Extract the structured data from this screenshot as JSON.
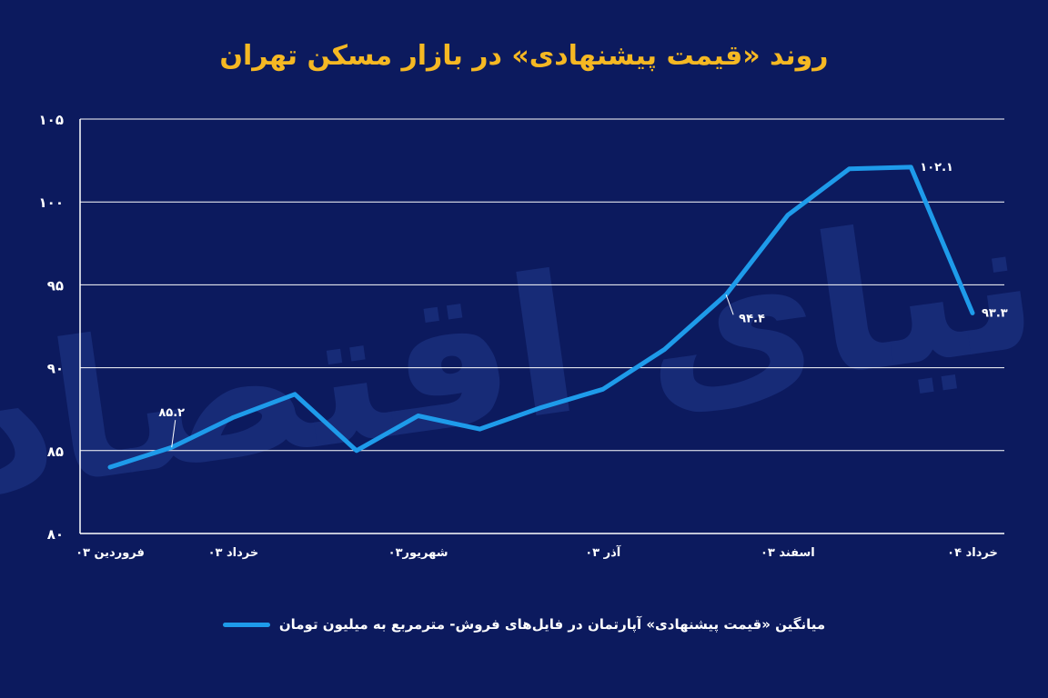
{
  "colors": {
    "background": "#0c1a5e",
    "title": "#f5b823",
    "line": "#1e9bea",
    "text": "#ffffff",
    "watermark": "#1b3180"
  },
  "watermark_text": "دنیای اقتصاد",
  "legend": {
    "label": "میانگین «قیمت پیشنهادی» آپارتمان در فایل‌های فروش- مترمربع به میلیون تومان"
  },
  "chart_data": {
    "type": "line",
    "title": "روند «قیمت پیشنهادی» در بازار مسکن تهران",
    "ylim": [
      80,
      105
    ],
    "yticks": [
      "۸۰",
      "۸۵",
      "۹۰",
      "۹۵",
      "۱۰۰",
      "۱۰۵"
    ],
    "ytick_values": [
      80,
      85,
      90,
      95,
      100,
      105
    ],
    "x_tick_labels": [
      {
        "label": "فروردین ۰۳",
        "index": 0
      },
      {
        "label": "خرداد ۰۳",
        "index": 2
      },
      {
        "label": "شهریور۰۳",
        "index": 5
      },
      {
        "label": "آذر ۰۳",
        "index": 8
      },
      {
        "label": "اسفند ۰۳",
        "index": 11
      },
      {
        "label": "خرداد ۰۴",
        "index": 14
      }
    ],
    "grid": true,
    "legend_position": "bottom",
    "series": [
      {
        "name": "میانگین «قیمت پیشنهادی» آپارتمان در فایل‌های فروش- مترمربع به میلیون تومان",
        "values": [
          84.0,
          85.2,
          87.0,
          88.4,
          85.0,
          87.1,
          86.3,
          87.6,
          88.7,
          91.1,
          94.4,
          99.2,
          102.0,
          102.1,
          93.3
        ]
      }
    ],
    "annotations": [
      {
        "index": 1,
        "text": "۸۵.۲"
      },
      {
        "index": 10,
        "text": "۹۴.۴"
      },
      {
        "index": 13,
        "text": "۱۰۲.۱"
      },
      {
        "index": 14,
        "text": "۹۳.۳"
      }
    ]
  }
}
